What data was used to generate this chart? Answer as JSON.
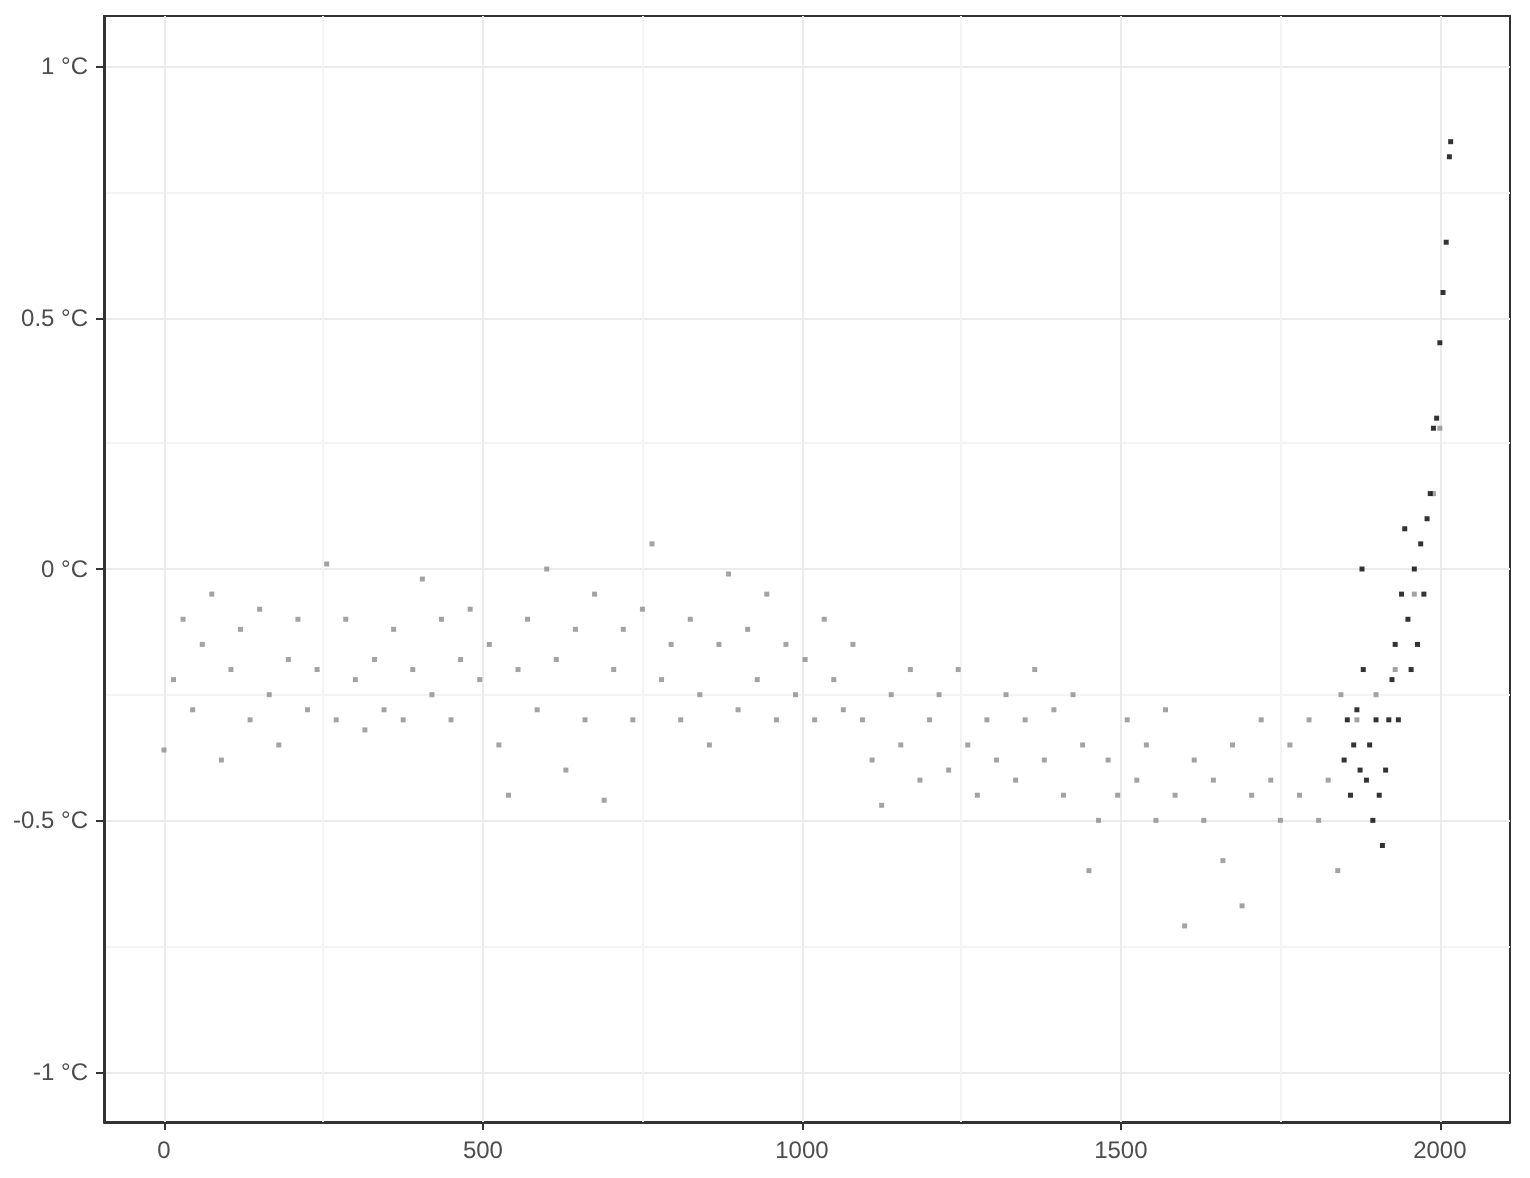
{
  "chart_data": {
    "type": "scatter",
    "marker": "square",
    "grid": true,
    "xlim": [
      -94,
      2110
    ],
    "xticks": [
      0,
      500,
      1000,
      1500,
      2000
    ],
    "ylim": [
      -1.1,
      1.1
    ],
    "yticks": [
      {
        "value": -1,
        "label": "-1 °C"
      },
      {
        "value": -0.5,
        "label": "-0.5 °C"
      },
      {
        "value": 0,
        "label": "0 °C"
      },
      {
        "value": 0.5,
        "label": "0.5 °C"
      },
      {
        "value": 1,
        "label": "1 °C"
      }
    ],
    "series": [
      {
        "color": "#8c8c8c",
        "x": [
          0,
          15,
          30,
          45,
          60,
          75,
          90,
          105,
          120,
          135,
          150,
          165,
          180,
          195,
          210,
          225,
          240,
          255,
          270,
          285,
          300,
          315,
          330,
          345,
          360,
          375,
          390,
          405,
          420,
          435,
          450,
          465,
          480,
          495,
          510,
          525,
          540,
          555,
          570,
          585,
          600,
          615,
          630,
          645,
          660,
          675,
          690,
          705,
          720,
          735,
          750,
          765,
          780,
          795,
          810,
          825,
          840,
          855,
          870,
          885,
          900,
          915,
          930,
          945,
          960,
          975,
          990,
          1005,
          1020,
          1035,
          1050,
          1065,
          1080,
          1095,
          1110,
          1125,
          1140,
          1155,
          1170,
          1185,
          1200,
          1215,
          1230,
          1245,
          1260,
          1275,
          1290,
          1305,
          1320,
          1335,
          1350,
          1365,
          1380,
          1395,
          1410,
          1425,
          1440,
          1450,
          1465,
          1480,
          1495,
          1510,
          1525,
          1540,
          1555,
          1570,
          1585,
          1600,
          1615,
          1630,
          1645,
          1660,
          1675,
          1690,
          1705,
          1720,
          1735,
          1750,
          1765,
          1780,
          1795,
          1810,
          1825,
          1840,
          1845,
          1870,
          1900,
          1930,
          1960,
          1990,
          2000
        ],
        "values": [
          -0.36,
          -0.22,
          -0.1,
          -0.28,
          -0.15,
          -0.05,
          -0.38,
          -0.2,
          -0.12,
          -0.3,
          -0.08,
          -0.25,
          -0.35,
          -0.18,
          -0.1,
          -0.28,
          -0.2,
          0.01,
          -0.3,
          -0.1,
          -0.22,
          -0.32,
          -0.18,
          -0.28,
          -0.12,
          -0.3,
          -0.2,
          -0.02,
          -0.25,
          -0.1,
          -0.3,
          -0.18,
          -0.08,
          -0.22,
          -0.15,
          -0.35,
          -0.45,
          -0.2,
          -0.1,
          -0.28,
          0.0,
          -0.18,
          -0.4,
          -0.12,
          -0.3,
          -0.05,
          -0.46,
          -0.2,
          -0.12,
          -0.3,
          -0.08,
          0.05,
          -0.22,
          -0.15,
          -0.3,
          -0.1,
          -0.25,
          -0.35,
          -0.15,
          -0.01,
          -0.28,
          -0.12,
          -0.22,
          -0.05,
          -0.3,
          -0.15,
          -0.25,
          -0.18,
          -0.3,
          -0.1,
          -0.22,
          -0.28,
          -0.15,
          -0.3,
          -0.38,
          -0.47,
          -0.25,
          -0.35,
          -0.2,
          -0.42,
          -0.3,
          -0.25,
          -0.4,
          -0.2,
          -0.35,
          -0.45,
          -0.3,
          -0.38,
          -0.25,
          -0.42,
          -0.3,
          -0.2,
          -0.38,
          -0.28,
          -0.45,
          -0.25,
          -0.35,
          -0.6,
          -0.5,
          -0.38,
          -0.45,
          -0.3,
          -0.42,
          -0.35,
          -0.5,
          -0.28,
          -0.45,
          -0.71,
          -0.38,
          -0.5,
          -0.42,
          -0.58,
          -0.35,
          -0.67,
          -0.45,
          -0.3,
          -0.42,
          -0.5,
          -0.35,
          -0.45,
          -0.3,
          -0.5,
          -0.42,
          -0.6,
          -0.25,
          -0.3,
          -0.25,
          -0.2,
          -0.05,
          0.15,
          0.28
        ]
      },
      {
        "color": "#000000",
        "x": [
          1850,
          1855,
          1860,
          1865,
          1870,
          1875,
          1878,
          1880,
          1885,
          1890,
          1895,
          1900,
          1905,
          1910,
          1915,
          1920,
          1925,
          1930,
          1935,
          1940,
          1945,
          1950,
          1955,
          1960,
          1965,
          1970,
          1975,
          1980,
          1985,
          1990,
          1995,
          2000,
          2005,
          2010,
          2015,
          2017
        ],
        "values": [
          -0.38,
          -0.3,
          -0.45,
          -0.35,
          -0.28,
          -0.4,
          0.0,
          -0.2,
          -0.42,
          -0.35,
          -0.5,
          -0.3,
          -0.45,
          -0.55,
          -0.4,
          -0.3,
          -0.22,
          -0.15,
          -0.3,
          -0.05,
          0.08,
          -0.1,
          -0.2,
          0.0,
          -0.15,
          0.05,
          -0.05,
          0.1,
          0.15,
          0.28,
          0.3,
          0.45,
          0.55,
          0.65,
          0.82,
          0.85
        ]
      }
    ]
  }
}
